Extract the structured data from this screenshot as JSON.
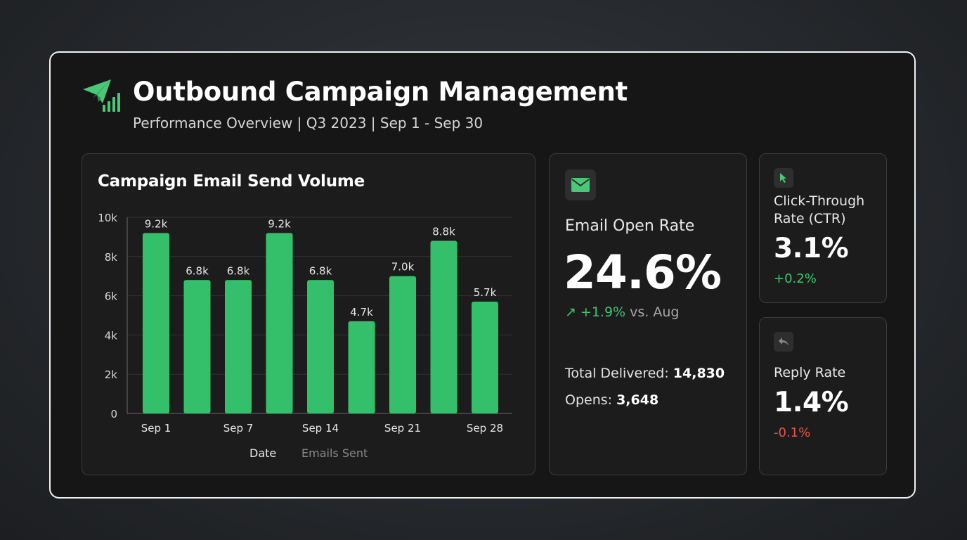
{
  "header": {
    "title": "Outbound Campaign Management",
    "subtitle": "Performance Overview | Q3 2023 | Sep 1 - Sep 30",
    "logo_icon": "paper-plane-bars-icon"
  },
  "colors": {
    "accent": "#34c06b",
    "positive": "#41c46e",
    "negative": "#e0584e",
    "card_bg": "#1c1c1c"
  },
  "chart": {
    "title": "Campaign Email Send Volume",
    "legend": {
      "date": "Date",
      "emails_sent": "Emails Sent"
    }
  },
  "chart_data": {
    "type": "bar",
    "title": "Campaign Email Send Volume",
    "values": [
      9.2,
      6.8,
      6.8,
      9.2,
      6.8,
      4.7,
      7.0,
      8.8,
      5.7
    ],
    "value_labels": [
      "9.2k",
      "6.8k",
      "6.8k",
      "9.2k",
      "6.8k",
      "4.7k",
      "7.0k",
      "8.8k",
      "5.7k"
    ],
    "x_tick_labels": [
      "Sep 1",
      "Sep 7",
      "Sep 14",
      "Sep 21",
      "Sep 28"
    ],
    "x_tick_bar_index": [
      0,
      2,
      4,
      6,
      8
    ],
    "y_ticks": [
      0,
      2,
      4,
      6,
      8,
      10
    ],
    "y_tick_labels": [
      "0",
      "2k",
      "4k",
      "6k",
      "8k",
      "10k"
    ],
    "ylim": [
      0,
      10
    ],
    "grid": true,
    "legend": [
      "Date",
      "Emails Sent"
    ],
    "legend_position": "bottom",
    "color": "#34c06b"
  },
  "open_rate": {
    "icon": "envelope-icon",
    "label": "Email Open Rate",
    "value": "24.6%",
    "delta_arrow": "↗",
    "delta": "+1.9%",
    "delta_suffix": "vs. Aug",
    "delivered_label": "Total Delivered:",
    "delivered_value": "14,830",
    "opens_label": "Opens:",
    "opens_value": "3,648"
  },
  "ctr": {
    "icon": "cursor-icon",
    "label": "Click-Through Rate (CTR)",
    "value": "3.1%",
    "delta": "+0.2%"
  },
  "reply": {
    "icon": "reply-icon",
    "label": "Reply Rate",
    "value": "1.4%",
    "delta": "-0.1%"
  }
}
